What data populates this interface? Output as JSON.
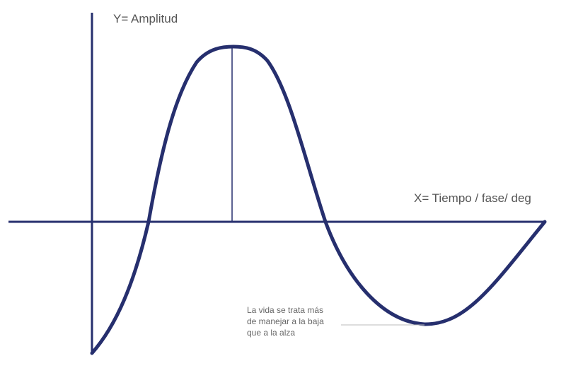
{
  "labels": {
    "y_axis": "Y= Amplitud",
    "x_axis": "X= Tiempo / fase/ deg"
  },
  "annotation": {
    "lines": [
      "La vida se trata más",
      "de manejar a la baja",
      "que a la alza"
    ]
  },
  "colors": {
    "curve": "#262f6e",
    "text": "#555555",
    "leader": "#bbbbbb"
  }
}
